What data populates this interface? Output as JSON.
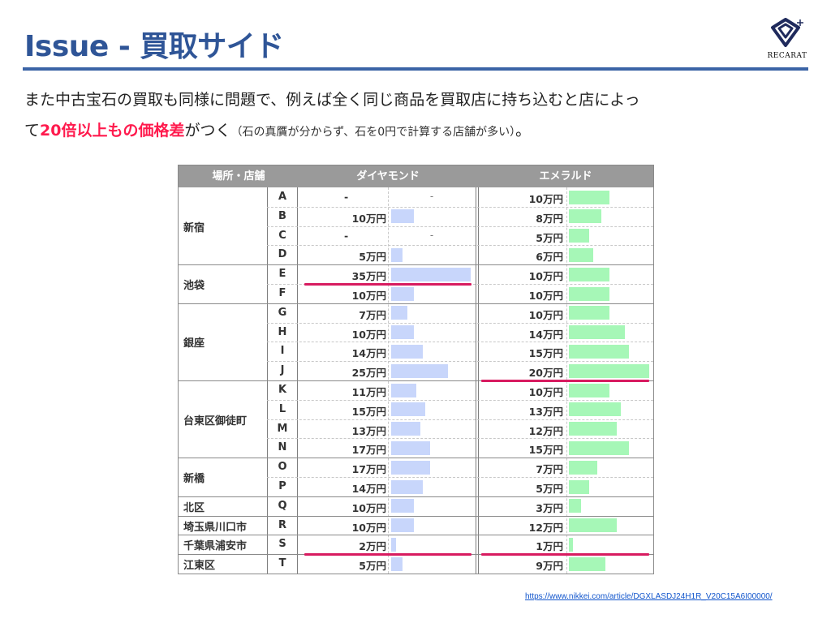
{
  "title": "Issue - 買取サイド",
  "logo": {
    "brand": "RECARAT"
  },
  "body": {
    "line1": "また中古宝石の買取も同様に問題で、例えば全く同じ商品を買取店に持ち込むと店によっ",
    "line2_prefix": "て",
    "line2_emphasis": "20倍以上もの価格差",
    "line2_suffix": "がつく",
    "line2_small": "（石の真贋が分からず、石を0円で計算する店舗が多い）",
    "line2_end": "。"
  },
  "table": {
    "headers": {
      "place": "場所・店舗",
      "diamond": "ダイヤモンド",
      "emerald": "エメラルド"
    },
    "areas": [
      {
        "name": "新宿",
        "start": 0,
        "count": 4
      },
      {
        "name": "池袋",
        "start": 4,
        "count": 2
      },
      {
        "name": "銀座",
        "start": 6,
        "count": 4
      },
      {
        "name": "台東区御徒町",
        "start": 10,
        "count": 4
      },
      {
        "name": "新橋",
        "start": 14,
        "count": 2
      },
      {
        "name": "北区",
        "start": 16,
        "count": 1
      },
      {
        "name": "埼玉県川口市",
        "start": 17,
        "count": 1
      },
      {
        "name": "千葉県浦安市",
        "start": 18,
        "count": 1
      },
      {
        "name": "江東区",
        "start": 19,
        "count": 1
      }
    ],
    "rows": [
      {
        "shop": "A",
        "diamond": "-",
        "diamond_value": null,
        "emerald": "10万円",
        "emerald_value": 10
      },
      {
        "shop": "B",
        "diamond": "10万円",
        "diamond_value": 10,
        "emerald": "8万円",
        "emerald_value": 8
      },
      {
        "shop": "C",
        "diamond": "-",
        "diamond_value": null,
        "emerald": "5万円",
        "emerald_value": 5
      },
      {
        "shop": "D",
        "diamond": "5万円",
        "diamond_value": 5,
        "emerald": "6万円",
        "emerald_value": 6
      },
      {
        "shop": "E",
        "diamond": "35万円",
        "diamond_value": 35,
        "emerald": "10万円",
        "emerald_value": 10
      },
      {
        "shop": "F",
        "diamond": "10万円",
        "diamond_value": 10,
        "emerald": "10万円",
        "emerald_value": 10
      },
      {
        "shop": "G",
        "diamond": "7万円",
        "diamond_value": 7,
        "emerald": "10万円",
        "emerald_value": 10
      },
      {
        "shop": "H",
        "diamond": "10万円",
        "diamond_value": 10,
        "emerald": "14万円",
        "emerald_value": 14
      },
      {
        "shop": "I",
        "diamond": "14万円",
        "diamond_value": 14,
        "emerald": "15万円",
        "emerald_value": 15
      },
      {
        "shop": "J",
        "diamond": "25万円",
        "diamond_value": 25,
        "emerald": "20万円",
        "emerald_value": 20
      },
      {
        "shop": "K",
        "diamond": "11万円",
        "diamond_value": 11,
        "emerald": "10万円",
        "emerald_value": 10
      },
      {
        "shop": "L",
        "diamond": "15万円",
        "diamond_value": 15,
        "emerald": "13万円",
        "emerald_value": 13
      },
      {
        "shop": "M",
        "diamond": "13万円",
        "diamond_value": 13,
        "emerald": "12万円",
        "emerald_value": 12
      },
      {
        "shop": "N",
        "diamond": "17万円",
        "diamond_value": 17,
        "emerald": "15万円",
        "emerald_value": 15
      },
      {
        "shop": "O",
        "diamond": "17万円",
        "diamond_value": 17,
        "emerald": "7万円",
        "emerald_value": 7
      },
      {
        "shop": "P",
        "diamond": "14万円",
        "diamond_value": 14,
        "emerald": "5万円",
        "emerald_value": 5
      },
      {
        "shop": "Q",
        "diamond": "10万円",
        "diamond_value": 10,
        "emerald": "3万円",
        "emerald_value": 3
      },
      {
        "shop": "R",
        "diamond": "10万円",
        "diamond_value": 10,
        "emerald": "12万円",
        "emerald_value": 12
      },
      {
        "shop": "S",
        "diamond": "2万円",
        "diamond_value": 2,
        "emerald": "1万円",
        "emerald_value": 1
      },
      {
        "shop": "T",
        "diamond": "5万円",
        "diamond_value": 5,
        "emerald": "9万円",
        "emerald_value": 9
      }
    ],
    "diamond_max": 35,
    "emerald_max": 20,
    "highlight_rows": {
      "diamond": [
        "E",
        "S"
      ],
      "emerald": [
        "J",
        "S"
      ]
    },
    "colors": {
      "diamond_bar": "#c8d6fb",
      "emerald_bar": "#a6f7b7",
      "highlight": "#d81b60",
      "header_bg": "#9a9a9a"
    }
  },
  "source_url": "https://www.nikkei.com/article/DGXLASDJ24H1R_V20C15A6I00000/",
  "colors": {
    "title": "#2f5597",
    "rule": "#3b64a6",
    "emphasis": "#ff1a4d"
  }
}
